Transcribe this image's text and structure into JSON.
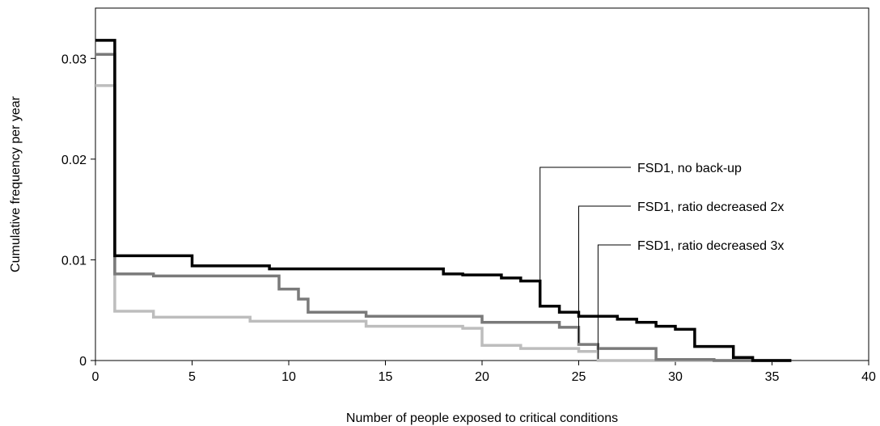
{
  "chart_data": {
    "type": "line",
    "step": true,
    "xlabel": "Number of people exposed to critical conditions",
    "ylabel": "Cumulative frequency per year",
    "xlim": [
      0,
      40
    ],
    "ylim": [
      0,
      0.035
    ],
    "xticks": [
      0,
      5,
      10,
      15,
      20,
      25,
      30,
      35,
      40
    ],
    "xtick_labels": [
      "0",
      "5",
      "10",
      "15",
      "20",
      "25",
      "30",
      "35",
      "40"
    ],
    "yticks": [
      0,
      0.01,
      0.02,
      0.03
    ],
    "ytick_labels": [
      "0",
      "0.01",
      "0.02",
      "0.03"
    ],
    "grid": false,
    "legend": "callouts",
    "series": [
      {
        "name": "FSD1, no back-up",
        "color": "#000000",
        "points": [
          [
            0,
            0.0318
          ],
          [
            1,
            0.0318
          ],
          [
            1,
            0.0104
          ],
          [
            5,
            0.0104
          ],
          [
            5,
            0.0094
          ],
          [
            9,
            0.0094
          ],
          [
            9,
            0.0091
          ],
          [
            18,
            0.0091
          ],
          [
            18,
            0.0086
          ],
          [
            19,
            0.0086
          ],
          [
            19,
            0.0085
          ],
          [
            21,
            0.0085
          ],
          [
            21,
            0.0082
          ],
          [
            22,
            0.0082
          ],
          [
            22,
            0.0079
          ],
          [
            23,
            0.0079
          ],
          [
            23,
            0.0054
          ],
          [
            24,
            0.0054
          ],
          [
            24,
            0.0048
          ],
          [
            25,
            0.0048
          ],
          [
            25,
            0.0044
          ],
          [
            27,
            0.0044
          ],
          [
            27,
            0.0041
          ],
          [
            28,
            0.0041
          ],
          [
            28,
            0.0038
          ],
          [
            29,
            0.0038
          ],
          [
            29,
            0.0034
          ],
          [
            30,
            0.0034
          ],
          [
            30,
            0.0031
          ],
          [
            31,
            0.0031
          ],
          [
            31,
            0.0014
          ],
          [
            33,
            0.0014
          ],
          [
            33,
            0.0003
          ],
          [
            34,
            0.0003
          ],
          [
            34,
            0
          ],
          [
            36,
            0
          ]
        ],
        "callout_x": 23
      },
      {
        "name": "FSD1, ratio decreased 2x",
        "color": "#7a7a7a",
        "points": [
          [
            0,
            0.0304
          ],
          [
            1,
            0.0304
          ],
          [
            1,
            0.0086
          ],
          [
            3,
            0.0086
          ],
          [
            3,
            0.0084
          ],
          [
            9.5,
            0.0084
          ],
          [
            9.5,
            0.0071
          ],
          [
            10.5,
            0.0071
          ],
          [
            10.5,
            0.0061
          ],
          [
            11,
            0.0061
          ],
          [
            11,
            0.0048
          ],
          [
            14,
            0.0048
          ],
          [
            14,
            0.0044
          ],
          [
            20,
            0.0044
          ],
          [
            20,
            0.0038
          ],
          [
            24,
            0.0038
          ],
          [
            24,
            0.0033
          ],
          [
            25,
            0.0033
          ],
          [
            25,
            0.0016
          ],
          [
            26,
            0.0016
          ],
          [
            26,
            0.0012
          ],
          [
            29,
            0.0012
          ],
          [
            29,
            0.0001
          ],
          [
            32,
            0.0001
          ],
          [
            32,
            0
          ],
          [
            36,
            0
          ]
        ],
        "callout_x": 25
      },
      {
        "name": "FSD1, ratio decreased 3x",
        "color": "#bdbdbd",
        "points": [
          [
            0,
            0.0273
          ],
          [
            1,
            0.0273
          ],
          [
            1,
            0.0049
          ],
          [
            3,
            0.0049
          ],
          [
            3,
            0.0043
          ],
          [
            8,
            0.0043
          ],
          [
            8,
            0.0039
          ],
          [
            14,
            0.0039
          ],
          [
            14,
            0.0034
          ],
          [
            19,
            0.0034
          ],
          [
            19,
            0.0032
          ],
          [
            20,
            0.0032
          ],
          [
            20,
            0.0015
          ],
          [
            22,
            0.0015
          ],
          [
            22,
            0.0012
          ],
          [
            25,
            0.0012
          ],
          [
            25,
            0.0009
          ],
          [
            26,
            0.0009
          ],
          [
            26,
            0
          ],
          [
            36,
            0
          ]
        ],
        "callout_x": 26
      }
    ]
  }
}
